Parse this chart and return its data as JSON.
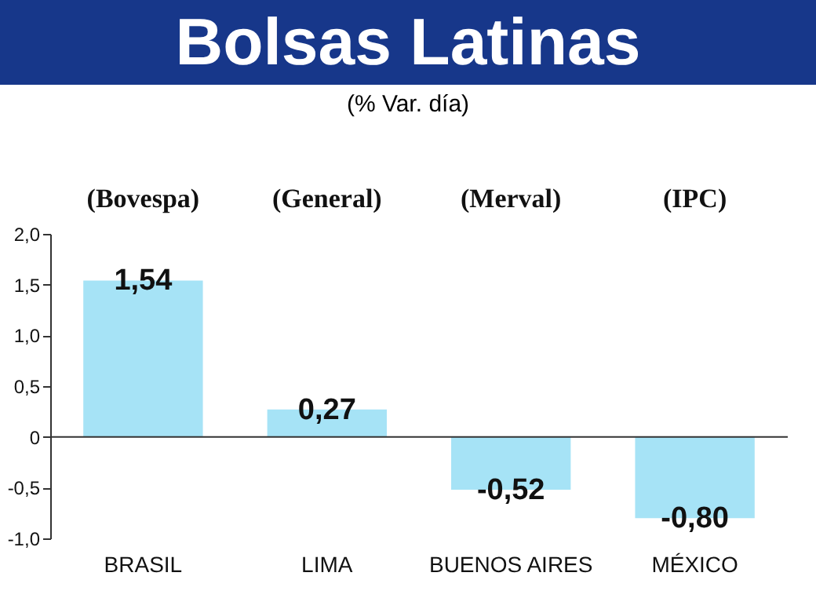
{
  "chart_data": {
    "type": "bar",
    "title": "Bolsas Latinas",
    "subtitle": "(% Var. día)",
    "annotations": [
      "(Bovespa)",
      "(General)",
      "(Merval)",
      "(IPC)"
    ],
    "categories": [
      "BRASIL",
      "LIMA",
      "BUENOS AIRES",
      "MÉXICO"
    ],
    "values": [
      1.54,
      0.27,
      -0.52,
      -0.8
    ],
    "value_labels": [
      "1,54",
      "0,27",
      "-0,52",
      "-0,80"
    ],
    "color": "#a6e3f6",
    "ylim": [
      -1,
      2
    ],
    "yticks": [
      {
        "value": -1,
        "label": "-1,0"
      },
      {
        "value": -0.5,
        "label": "-0,5"
      },
      {
        "value": 0,
        "label": "0"
      },
      {
        "value": 0.5,
        "label": "0,5"
      },
      {
        "value": 1,
        "label": "1,0"
      },
      {
        "value": 1.5,
        "label": "1,5"
      },
      {
        "value": 2,
        "label": "2,0"
      }
    ],
    "ref_lines": [
      {
        "axis": "y",
        "value": 0,
        "color": "#333333"
      }
    ],
    "grid": false
  }
}
